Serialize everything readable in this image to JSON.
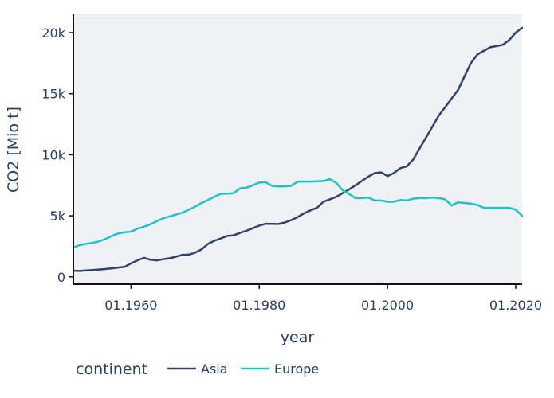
{
  "chart_data": {
    "type": "line",
    "xlabel": "year",
    "ylabel": "CO2 [Mio t]",
    "xlim": [
      1951,
      2021
    ],
    "ylim": [
      -600,
      21500
    ],
    "x_ticks": [
      {
        "value": 1960,
        "label": "01.1960"
      },
      {
        "value": 1980,
        "label": "01.1980"
      },
      {
        "value": 2000,
        "label": "01.2000"
      },
      {
        "value": 2020,
        "label": "01.2020"
      }
    ],
    "y_ticks": [
      {
        "value": 0,
        "label": "0"
      },
      {
        "value": 5000,
        "label": "5k"
      },
      {
        "value": 10000,
        "label": "10k"
      },
      {
        "value": 15000,
        "label": "15k"
      },
      {
        "value": 20000,
        "label": "20k"
      }
    ],
    "grid": false,
    "legend": {
      "title": "continent",
      "placement": "bottom-left"
    },
    "series": [
      {
        "name": "Asia",
        "color": "#2f4468",
        "x": [
          1951,
          1952,
          1953,
          1954,
          1955,
          1956,
          1957,
          1958,
          1959,
          1960,
          1961,
          1962,
          1963,
          1964,
          1965,
          1966,
          1967,
          1968,
          1969,
          1970,
          1971,
          1972,
          1973,
          1974,
          1975,
          1976,
          1977,
          1978,
          1979,
          1980,
          1981,
          1982,
          1983,
          1984,
          1985,
          1986,
          1987,
          1988,
          1989,
          1990,
          1991,
          1992,
          1993,
          1994,
          1995,
          1996,
          1997,
          1998,
          1999,
          2000,
          2001,
          2002,
          2003,
          2004,
          2005,
          2006,
          2007,
          2008,
          2009,
          2010,
          2011,
          2012,
          2013,
          2014,
          2015,
          2016,
          2017,
          2018,
          2019,
          2020,
          2021
        ],
        "y": [
          500,
          480,
          520,
          560,
          600,
          640,
          700,
          760,
          820,
          1100,
          1350,
          1550,
          1400,
          1350,
          1450,
          1520,
          1650,
          1800,
          1820,
          1980,
          2250,
          2700,
          2950,
          3150,
          3350,
          3400,
          3600,
          3780,
          3980,
          4200,
          4350,
          4340,
          4330,
          4450,
          4650,
          4900,
          5200,
          5450,
          5650,
          6150,
          6350,
          6550,
          6850,
          7150,
          7500,
          7850,
          8200,
          8500,
          8550,
          8250,
          8500,
          8900,
          9050,
          9600,
          10500,
          11400,
          12300,
          13200,
          13900,
          14600,
          15300,
          16400,
          17500,
          18200,
          18500,
          18800,
          18900,
          19000,
          19400,
          20000,
          20400
        ]
      },
      {
        "name": "Europe",
        "color": "#1cc3c3",
        "x": [
          1951,
          1952,
          1953,
          1954,
          1955,
          1956,
          1957,
          1958,
          1959,
          1960,
          1961,
          1962,
          1963,
          1964,
          1965,
          1966,
          1967,
          1968,
          1969,
          1970,
          1971,
          1972,
          1973,
          1974,
          1975,
          1976,
          1977,
          1978,
          1979,
          1980,
          1981,
          1982,
          1983,
          1984,
          1985,
          1986,
          1987,
          1988,
          1989,
          1990,
          1991,
          1992,
          1993,
          1994,
          1995,
          1996,
          1997,
          1998,
          1999,
          2000,
          2001,
          2002,
          2003,
          2004,
          2005,
          2006,
          2007,
          2008,
          2009,
          2010,
          2011,
          2012,
          2013,
          2014,
          2015,
          2016,
          2017,
          2018,
          2019,
          2020,
          2021
        ],
        "y": [
          2400,
          2600,
          2700,
          2780,
          2900,
          3100,
          3350,
          3550,
          3650,
          3700,
          3950,
          4100,
          4300,
          4550,
          4800,
          4950,
          5100,
          5250,
          5500,
          5750,
          6050,
          6300,
          6550,
          6800,
          6820,
          6850,
          7250,
          7300,
          7500,
          7720,
          7750,
          7450,
          7400,
          7420,
          7450,
          7800,
          7800,
          7800,
          7820,
          7850,
          8000,
          7700,
          7100,
          6800,
          6450,
          6450,
          6500,
          6250,
          6250,
          6150,
          6150,
          6300,
          6250,
          6400,
          6450,
          6450,
          6500,
          6450,
          6350,
          5850,
          6100,
          6050,
          6000,
          5900,
          5650,
          5650,
          5650,
          5650,
          5650,
          5500,
          5000
        ]
      }
    ]
  }
}
